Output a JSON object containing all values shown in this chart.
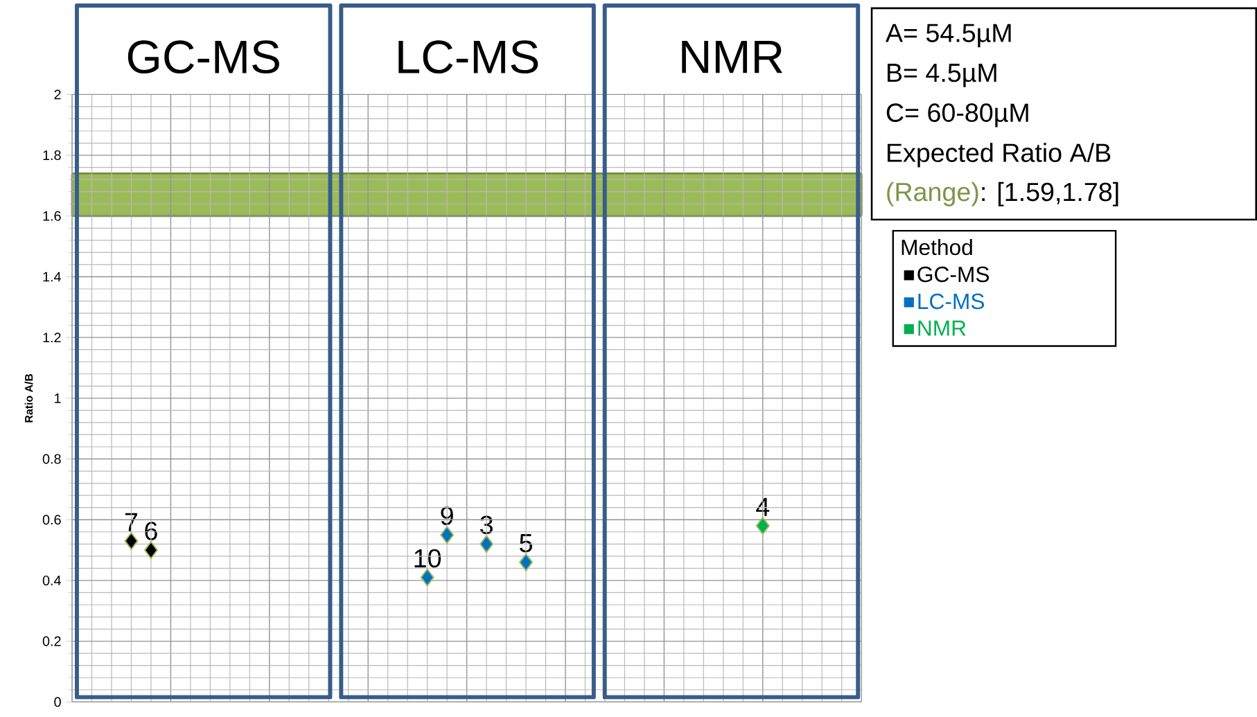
{
  "chart_data": {
    "type": "scatter",
    "ylabel": "Ratio A/B",
    "legend_title": "Method",
    "annotations": [
      "GC-MS",
      "LC-MS",
      "NMR",
      "A= 54.5µM",
      "B= 4.5µM",
      "C= 60-80µM",
      "Expected Ratio A/B",
      "(Range)",
      ": [1.59,1.78]",
      {
        "text": "7",
        "y": 0.53
      },
      {
        "text": "6",
        "y": 0.5
      },
      {
        "text": "10",
        "y": 0.41
      },
      {
        "text": "9",
        "y": 0.55
      },
      {
        "text": "3",
        "y": 0.52
      },
      {
        "text": "5",
        "y": 0.46
      },
      {
        "text": "4",
        "y": 0.58
      }
    ],
    "categories": [
      null,
      null,
      null,
      null,
      null,
      null,
      null,
      null,
      null,
      null,
      null,
      null,
      null,
      null,
      null,
      null,
      null,
      null,
      null,
      null,
      null,
      null,
      null,
      null,
      null,
      null,
      null,
      null,
      null,
      null,
      null,
      null,
      null,
      null,
      null,
      null,
      null,
      null,
      null
    ],
    "ylim": [
      0,
      2
    ],
    "yticks": [
      0,
      0.2,
      0.4,
      0.6,
      0.8,
      1,
      1.2,
      1.4,
      1.6,
      1.8,
      2
    ],
    "tick_labels": "y",
    "grid": true,
    "marker": "diamond",
    "legend": "right",
    "bands": [
      {
        "axis": "y",
        "from": 1.6,
        "to": 1.74,
        "color": "#9bbb59"
      }
    ],
    "series": [
      {
        "name": "GC-MS",
        "color": "#000000",
        "values": [
          null,
          null,
          0.53,
          0.5,
          null,
          null,
          null,
          null,
          null,
          null,
          null,
          null,
          null,
          null,
          null,
          null,
          null,
          null,
          null,
          null,
          null,
          null,
          null,
          null,
          null,
          null,
          null,
          null,
          null,
          null,
          null,
          null,
          null,
          null,
          null,
          null,
          null,
          null,
          null
        ]
      },
      {
        "name": "LC-MS",
        "color": "#0070c0",
        "values": [
          null,
          null,
          null,
          null,
          null,
          null,
          null,
          null,
          null,
          null,
          null,
          null,
          null,
          null,
          null,
          null,
          null,
          0.41,
          0.55,
          null,
          0.52,
          null,
          0.46,
          null,
          null,
          null,
          null,
          null,
          null,
          null,
          null,
          null,
          null,
          null,
          null,
          null,
          null,
          null,
          null
        ]
      },
      {
        "name": "NMR",
        "color": "#00b050",
        "values": [
          null,
          null,
          null,
          null,
          null,
          null,
          null,
          null,
          null,
          null,
          null,
          null,
          null,
          null,
          null,
          null,
          null,
          null,
          null,
          null,
          null,
          null,
          null,
          null,
          null,
          null,
          null,
          null,
          null,
          null,
          null,
          null,
          null,
          null,
          0.58,
          null,
          null,
          null,
          null
        ]
      }
    ]
  }
}
